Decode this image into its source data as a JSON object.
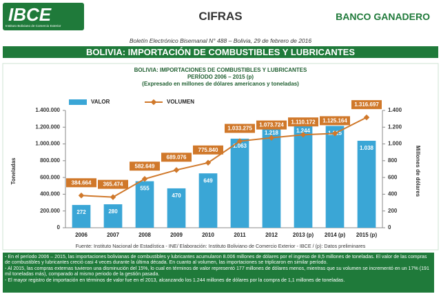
{
  "header": {
    "logo": "IBCE",
    "logo_subtitle": "Instituto Boliviano de Comercio Exterior",
    "section": "CIFRAS",
    "sponsor": "BANCO GANADERO",
    "bulletin": "Boletín Electrónico Bisemanal N° 488 – Bolivia, 29 de febrero de 2016",
    "title": "BOLIVIA: IMPORTACIÓN DE COMBUSTIBLES Y LUBRICANTES"
  },
  "chart_data": {
    "type": "bar",
    "title": "BOLIVIA: IMPORTACIONES DE COMBUSTIBLES Y LUBRICANTES",
    "subtitle": "PERÍODO 2006 – 2015 (p)",
    "note": "(Expresado en millones de dólares americanos y toneladas)",
    "ylabel": "Toneladas",
    "y2label": "Millones de dólares",
    "categories": [
      "2006",
      "2007",
      "2008",
      "2009",
      "2010",
      "2011",
      "2012",
      "2013 (p)",
      "2014 (p)",
      "2015 (p)"
    ],
    "series": [
      {
        "name": "VALOR",
        "type": "bar",
        "axis": "y2",
        "color": "#3aa6d6",
        "values": [
          272,
          280,
          555,
          470,
          649,
          1063,
          1218,
          1244,
          1215,
          1038
        ],
        "value_labels": [
          "272",
          "280",
          "555",
          "470",
          "649",
          "1.063",
          "1.218",
          "1.244",
          "1.215",
          "1.038"
        ]
      },
      {
        "name": "VOLUMEN",
        "type": "line",
        "color": "#d0782a",
        "values": [
          384664,
          365474,
          582649,
          689076,
          775840,
          1033275,
          1073724,
          1110172,
          1125164,
          1316697
        ],
        "value_labels": [
          "384.664",
          "365.474",
          "582.649",
          "689.076",
          "775.840",
          "1.033.275",
          "1.073.724",
          "1.110.172",
          "1.125.164",
          "1.316.697"
        ]
      }
    ],
    "ylim": [
      0,
      1400000
    ],
    "yticks": [
      0,
      {
        "value": 200000,
        "label": "200.000"
      },
      {
        "value": 400000,
        "label": "400.000"
      },
      {
        "value": 600000,
        "label": "600.000"
      },
      {
        "value": 800000,
        "label": "800.000"
      },
      {
        "value": 1000000,
        "label": "1.000.000"
      },
      {
        "value": 1200000,
        "label": "1.200.000"
      },
      {
        "value": 1400000,
        "label": "1.400.000"
      }
    ],
    "y2lim": [
      0,
      1400
    ],
    "y2ticks": [
      0,
      200,
      400,
      600,
      800,
      {
        "value": 1000,
        "label": "1.000"
      },
      {
        "value": 1200,
        "label": "1.200"
      },
      {
        "value": 1400,
        "label": "1.400"
      }
    ],
    "source": "Fuente: Instituto Nacional de Estadística - INE/ Elaboración: Instituto Boliviano de Comercio Exterior - IBCE / (p): Datos preliminares"
  },
  "notes": [
    "- En el período 2006 – 2015, las importaciones bolivianas de combustibles y lubricantes acumularon 8.006 millones de dólares por el ingreso de 8,5 millones de toneladas. El valor de las compras de combustibles y lubricantes creció casi 4 veces durante la última década. En cuanto al volumen, las importaciones se triplicaron en similar período.",
    "- Al 2015, las compras externas tuvieron una disminución del 15%, lo cual en términos de valor representó 177 millones de dólares menos, mientras que su volumen se incrementó en un 17% (191 mil toneladas más), comparado al mismo periodo de la gestión pasada.",
    "- El mayor registro de importación en términos de valor fue en el 2013, alcanzando los 1.244 millones de dólares por la compra de 1,1 millones de toneladas."
  ]
}
